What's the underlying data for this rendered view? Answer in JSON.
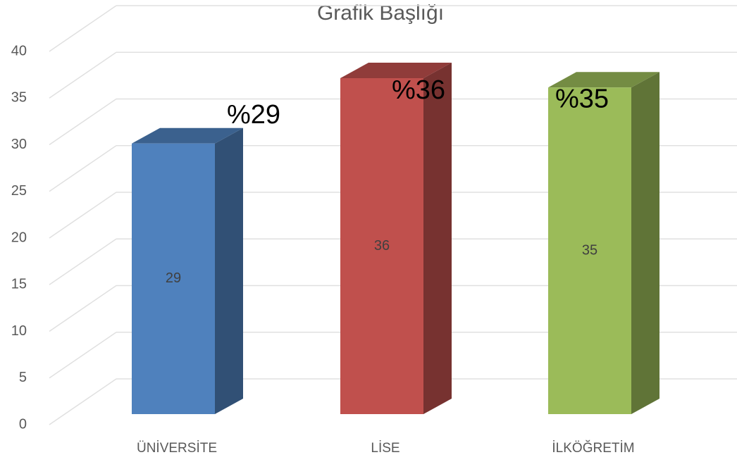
{
  "chart_data": {
    "type": "bar3d",
    "title": "Grafik Başlığı",
    "categories": [
      "ÜNİVERSİTE",
      "LİSE",
      "İLKÖĞRETİM"
    ],
    "values": [
      29,
      36,
      35
    ],
    "value_labels": [
      "%29",
      "%36",
      "%35"
    ],
    "colors": [
      "#4f81bd",
      "#c0504d",
      "#9bbb59"
    ],
    "ylim": [
      0,
      40
    ],
    "yticks": [
      0,
      5,
      10,
      15,
      20,
      25,
      30,
      35,
      40
    ],
    "grid": true
  }
}
